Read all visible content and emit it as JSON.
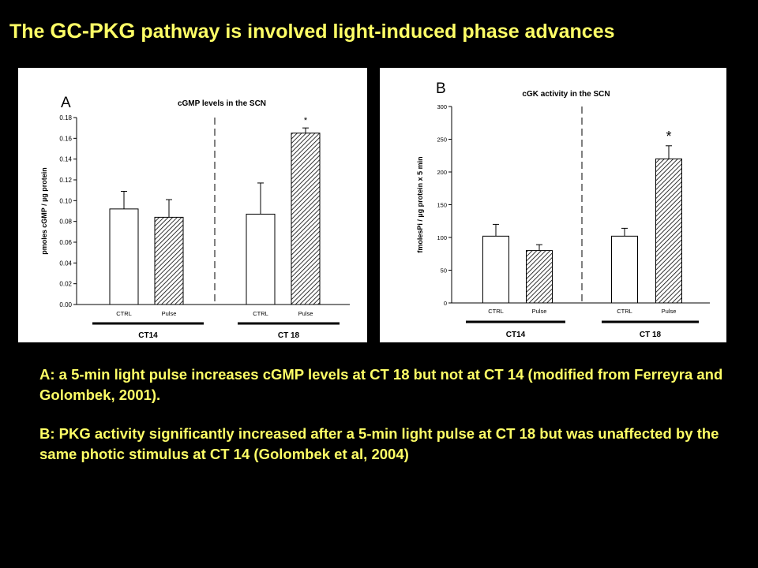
{
  "slide": {
    "title_pre": "The ",
    "title_gc": "GC-PKG",
    "title_post": " pathway is involved  light-induced phase advances"
  },
  "captions": {
    "a": "A: a 5-min light pulse increases cGMP levels at CT 18 but not at CT 14 (modified from Ferreyra and Golombek, 2001).",
    "b": "B: PKG activity significantly increased after a 5-min  light pulse at CT 18 but was unaffected by the same photic stimulus at CT 14 (Golombek et al, 2004)"
  },
  "colors": {
    "title": "#ffff66",
    "background": "#000000",
    "panel": "#ffffff",
    "ink": "#000000"
  },
  "chart_data": [
    {
      "type": "bar",
      "panel_letter": "A",
      "title": "cGMP levels in the SCN",
      "xlabel": "",
      "ylabel": "pmoles cGMP / µg protein",
      "ylim": [
        0,
        0.18
      ],
      "yticks": [
        0,
        0.02,
        0.04,
        0.06,
        0.08,
        0.1,
        0.12,
        0.14,
        0.16,
        0.18
      ],
      "ytick_labels": [
        "0.00",
        "0.02",
        "0.04",
        "0.06",
        "0.08",
        "0.10",
        "0.12",
        "0.14",
        "0.16",
        "0.18"
      ],
      "categories": [
        "CTRL",
        "Pulse",
        "CTRL",
        "Pulse"
      ],
      "values": [
        0.092,
        0.084,
        0.087,
        0.165
      ],
      "errors": [
        0.017,
        0.017,
        0.03,
        0.005
      ],
      "patterns": [
        "open",
        "hatched",
        "open",
        "hatched"
      ],
      "significance": [
        "",
        "",
        "",
        "*"
      ],
      "groups": [
        {
          "label": "CT14",
          "bars": [
            0,
            1
          ]
        },
        {
          "label": "CT 18",
          "bars": [
            2,
            3
          ]
        }
      ],
      "grid": false
    },
    {
      "type": "bar",
      "panel_letter": "B",
      "title": "cGK activity in the SCN",
      "xlabel": "",
      "ylabel": "fmolesPi / µg protein x 5 min",
      "ylim": [
        0,
        300
      ],
      "yticks": [
        0,
        50,
        100,
        150,
        200,
        250,
        300
      ],
      "ytick_labels": [
        "0",
        "50",
        "100",
        "150",
        "200",
        "250",
        "300"
      ],
      "categories": [
        "CTRL",
        "Pulse",
        "CTRL",
        "Pulse"
      ],
      "values": [
        102,
        80,
        102,
        220
      ],
      "errors": [
        18,
        9,
        12,
        20
      ],
      "patterns": [
        "open",
        "hatched",
        "open",
        "hatched"
      ],
      "significance": [
        "",
        "",
        "",
        "*"
      ],
      "groups": [
        {
          "label": "CT14",
          "bars": [
            0,
            1
          ]
        },
        {
          "label": "CT 18",
          "bars": [
            2,
            3
          ]
        }
      ],
      "grid": false
    }
  ]
}
